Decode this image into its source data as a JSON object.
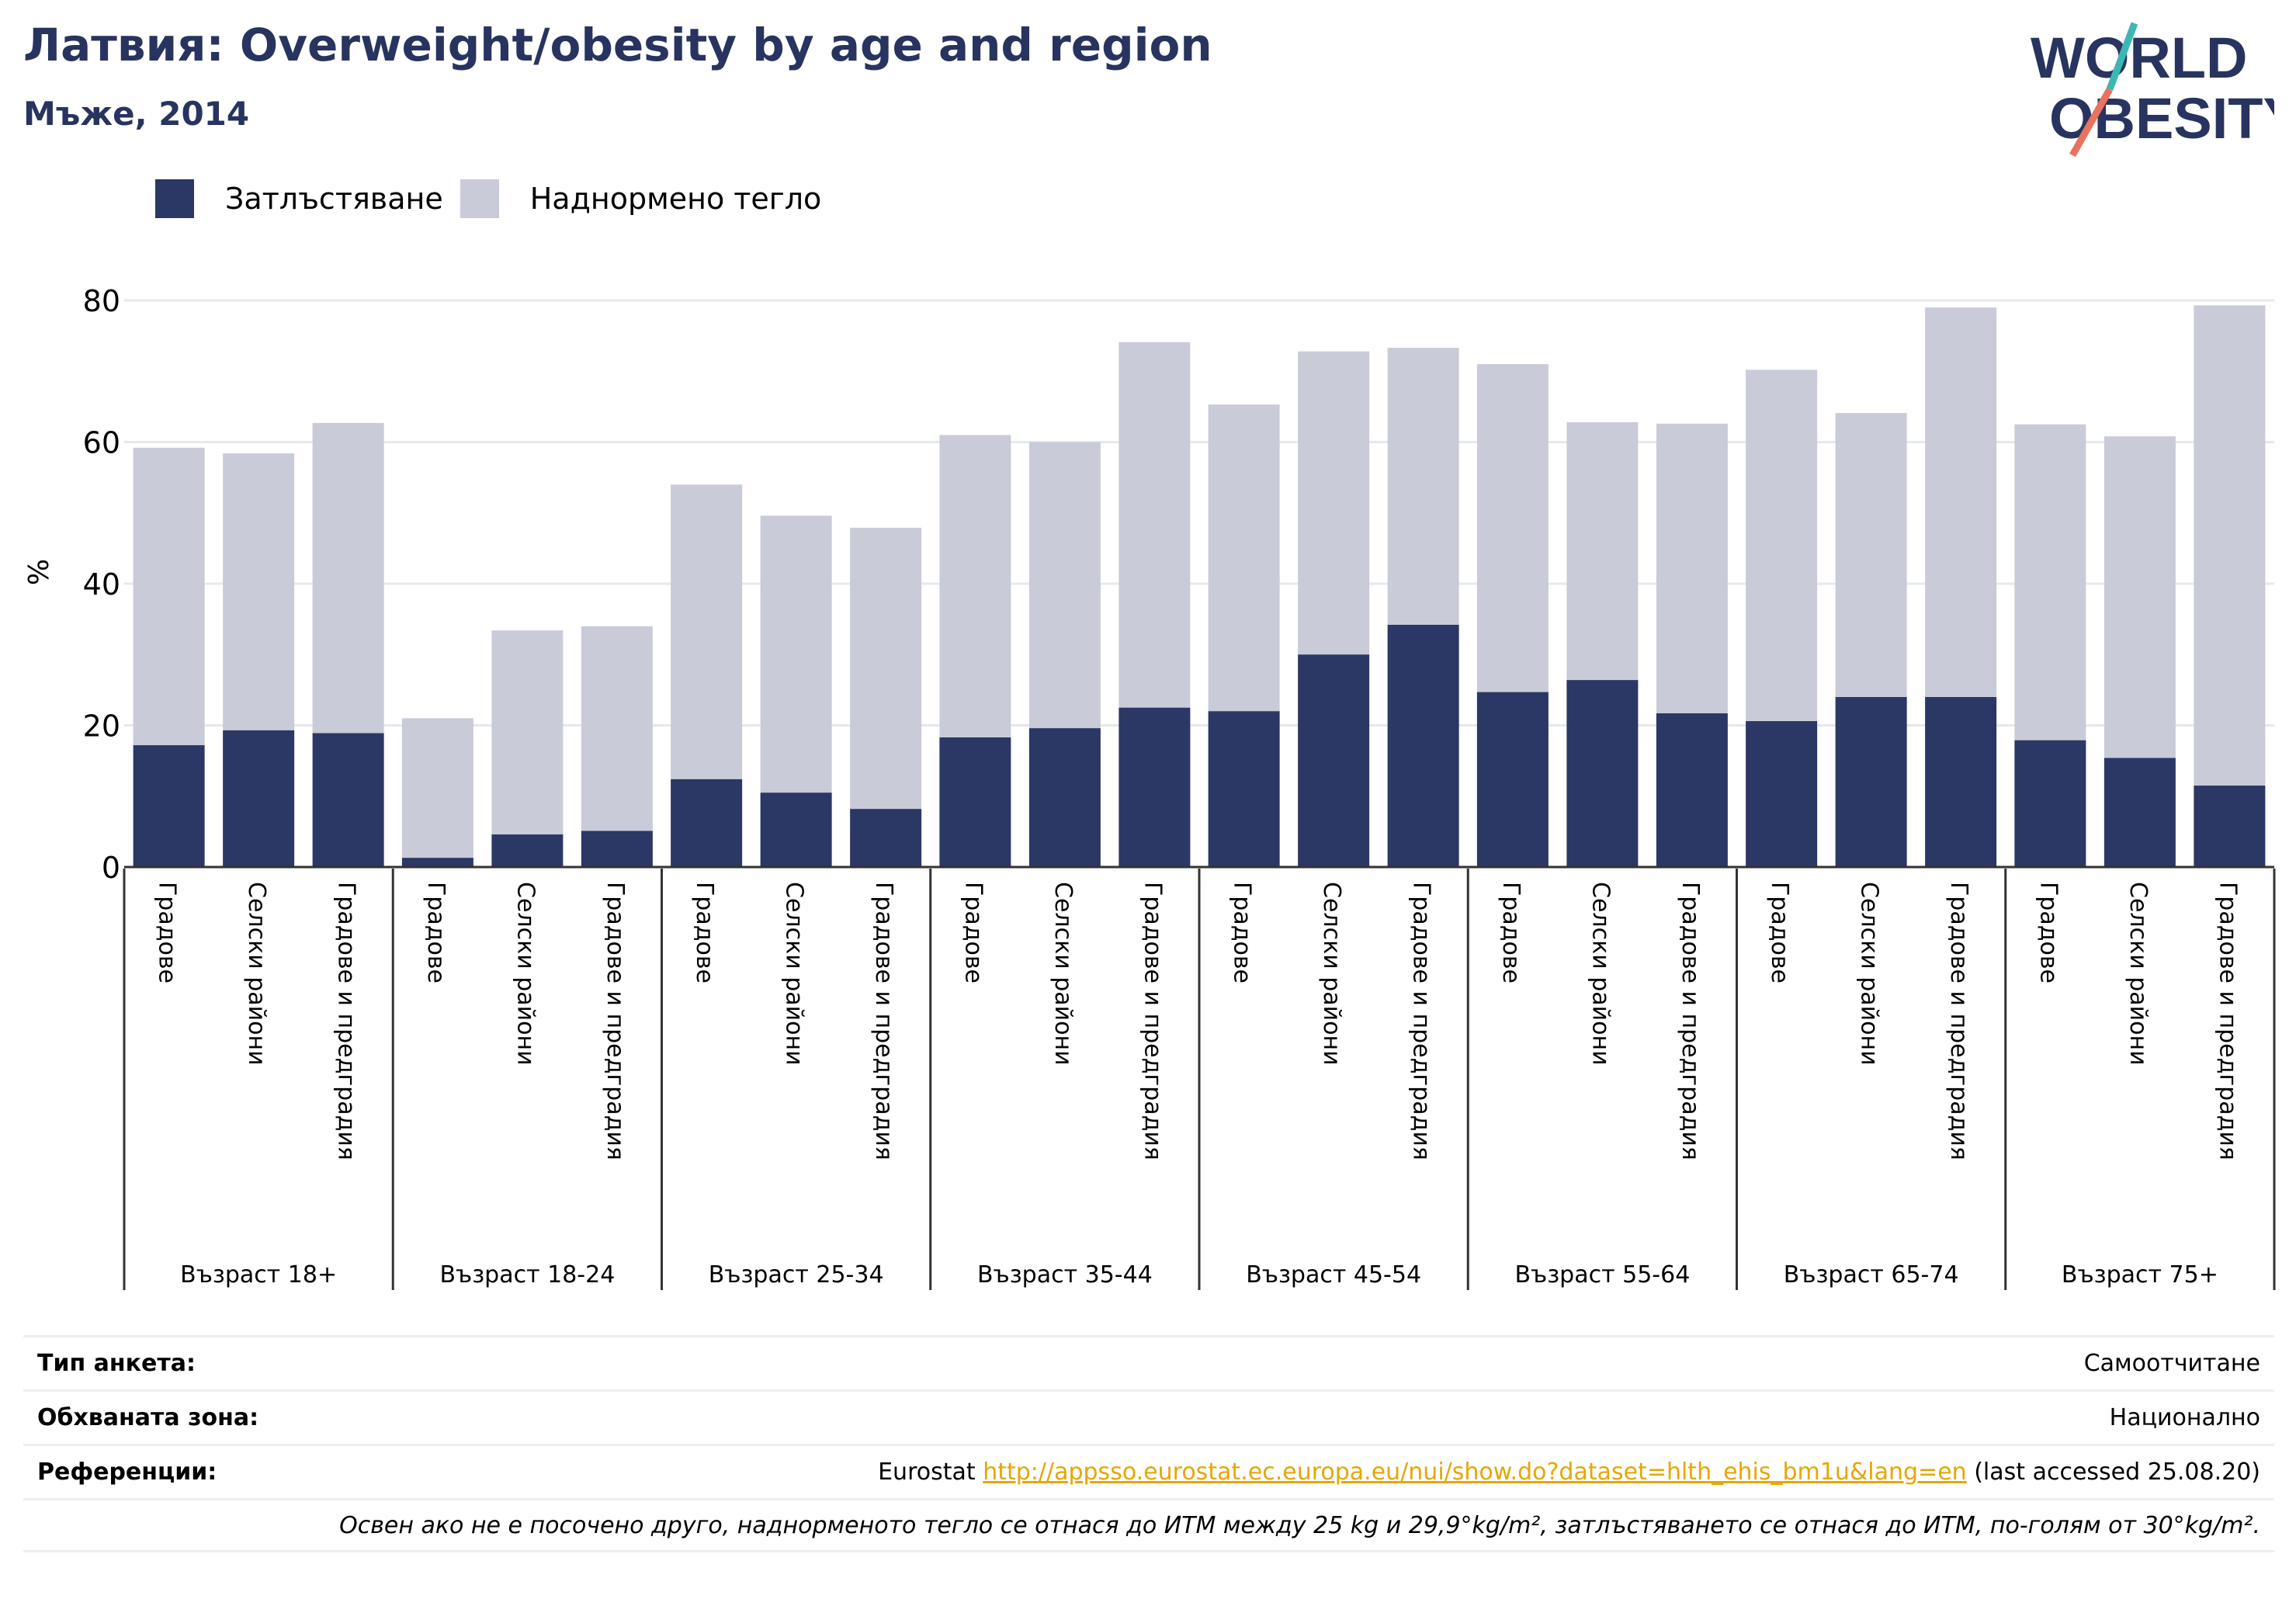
{
  "title": "Латвия: Overweight/obesity by age and region",
  "subtitle": "Мъже, 2014",
  "logo": {
    "line1": "WORLD",
    "line2": "OBESITY"
  },
  "colors": {
    "obesity": "#2b3765",
    "overweight": "#c9cbd8",
    "title": "#28345f",
    "grid": "#e6e8ee",
    "link": "#e6a700"
  },
  "legend": [
    {
      "label": "Затлъстяване",
      "color": "#2b3765"
    },
    {
      "label": "Наднормено тегло",
      "color": "#c9cbd8"
    }
  ],
  "chart_data": {
    "type": "bar",
    "stacked": true,
    "ylabel": "%",
    "ylim": [
      0,
      80
    ],
    "yticks": [
      0,
      20,
      40,
      60,
      80
    ],
    "grid": true,
    "legend_position": "top-left",
    "groups": [
      {
        "label": "Възраст 18+",
        "bars": [
          {
            "category": "Градове",
            "obesity": 17.2,
            "total": 59.2
          },
          {
            "category": "Селски райони",
            "obesity": 19.3,
            "total": 58.4
          },
          {
            "category": "Градове и предградия",
            "obesity": 18.9,
            "total": 62.7
          }
        ]
      },
      {
        "label": "Възраст 18-24",
        "bars": [
          {
            "category": "Градове",
            "obesity": 1.3,
            "total": 21.0
          },
          {
            "category": "Селски райони",
            "obesity": 4.6,
            "total": 33.4
          },
          {
            "category": "Градове и предградия",
            "obesity": 5.1,
            "total": 34.0
          }
        ]
      },
      {
        "label": "Възраст 25-34",
        "bars": [
          {
            "category": "Градове",
            "obesity": 12.4,
            "total": 54.0
          },
          {
            "category": "Селски райони",
            "obesity": 10.5,
            "total": 49.6
          },
          {
            "category": "Градове и предградия",
            "obesity": 8.2,
            "total": 47.9
          }
        ]
      },
      {
        "label": "Възраст 35-44",
        "bars": [
          {
            "category": "Градове",
            "obesity": 18.3,
            "total": 61.0
          },
          {
            "category": "Селски райони",
            "obesity": 19.6,
            "total": 60.0
          },
          {
            "category": "Градове и предградия",
            "obesity": 22.5,
            "total": 74.1
          }
        ]
      },
      {
        "label": "Възраст 45-54",
        "bars": [
          {
            "category": "Градове",
            "obesity": 22.0,
            "total": 65.3
          },
          {
            "category": "Селски райони",
            "obesity": 30.0,
            "total": 72.8
          },
          {
            "category": "Градове и предградия",
            "obesity": 34.2,
            "total": 73.3
          }
        ]
      },
      {
        "label": "Възраст 55-64",
        "bars": [
          {
            "category": "Градове",
            "obesity": 24.7,
            "total": 71.0
          },
          {
            "category": "Селски райони",
            "obesity": 26.4,
            "total": 62.8
          },
          {
            "category": "Градове и предградия",
            "obesity": 21.7,
            "total": 62.6
          }
        ]
      },
      {
        "label": "Възраст 65-74",
        "bars": [
          {
            "category": "Градове",
            "obesity": 20.6,
            "total": 70.2
          },
          {
            "category": "Селски райони",
            "obesity": 24.0,
            "total": 64.1
          },
          {
            "category": "Градове и предградия",
            "obesity": 24.0,
            "total": 79.0
          }
        ]
      },
      {
        "label": "Възраст 75+",
        "bars": [
          {
            "category": "Градове",
            "obesity": 17.9,
            "total": 62.5
          },
          {
            "category": "Селски райони",
            "obesity": 15.4,
            "total": 60.8
          },
          {
            "category": "Градове и предградия",
            "obesity": 11.5,
            "total": 79.3
          }
        ]
      }
    ]
  },
  "info": {
    "survey_type_label": "Тип анкета:",
    "survey_type_value": "Самоотчитане",
    "coverage_label": "Обхваната зона:",
    "coverage_value": "Национално",
    "references_label": "Референции:",
    "ref_prefix": "Eurostat",
    "ref_link": "http://appsso.eurostat.ec.europa.eu/nui/show.do?dataset=hlth_ehis_bm1u&lang=en",
    "ref_suffix": "(last accessed 25.08.20)",
    "note": "Освен ако не е посочено друго, наднорменото тегло се отнася до ИТМ между 25 kg и 29,9°kg/m², затлъстяването се отнася до ИТМ, по-голям от 30°kg/m²."
  }
}
